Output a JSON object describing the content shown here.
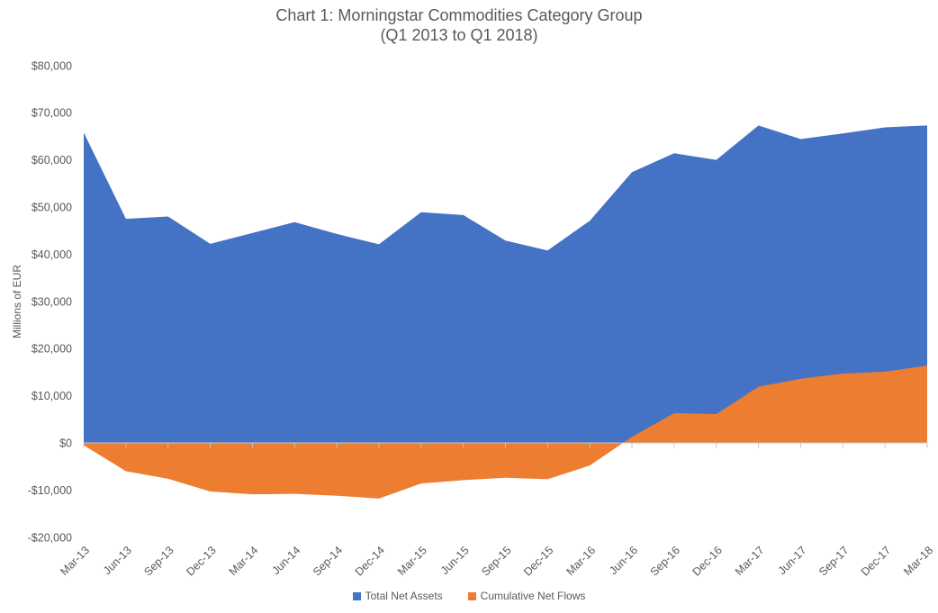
{
  "title": {
    "line1": "Chart 1: Morningstar Commodities Category Group",
    "line2": "(Q1 2013 to Q1 2018)"
  },
  "y_axis": {
    "title": "Millions of EUR",
    "tick_labels": [
      "$80,000",
      "$70,000",
      "$60,000",
      "$50,000",
      "$40,000",
      "$30,000",
      "$20,000",
      "$10,000",
      "$0",
      "-$10,000",
      "-$20,000"
    ]
  },
  "legend": {
    "items": [
      {
        "label": "Total Net Assets",
        "color": "#4472C4"
      },
      {
        "label": "Cumulative Net Flows",
        "color": "#ED7D31"
      }
    ]
  },
  "colors": {
    "series_blue": "#4472C4",
    "series_orange": "#ED7D31",
    "text": "#595959",
    "axis": "#C6C6C6",
    "background": "#FFFFFF"
  },
  "chart_data": {
    "type": "area",
    "title": "Chart 1: Morningstar Commodities Category Group (Q1 2013 to Q1 2018)",
    "xlabel": "",
    "ylabel": "Millions of EUR",
    "ylim": [
      -20000,
      80000
    ],
    "y_tick_step": 10000,
    "grid": false,
    "legend_position": "bottom",
    "categories": [
      "Mar-13",
      "Jun-13",
      "Sep-13",
      "Dec-13",
      "Mar-14",
      "Jun-14",
      "Sep-14",
      "Dec-14",
      "Mar-15",
      "Jun-15",
      "Sep-15",
      "Dec-15",
      "Mar-16",
      "Jun-16",
      "Sep-16",
      "Dec-16",
      "Mar-17",
      "Jun-17",
      "Sep-17",
      "Dec-17",
      "Mar-18"
    ],
    "series": [
      {
        "name": "Total Net Assets",
        "color": "#4472C4",
        "baseline": 0,
        "values": [
          65800,
          47500,
          48000,
          42200,
          44500,
          46800,
          44300,
          42100,
          48900,
          48300,
          42900,
          40800,
          47100,
          57400,
          61400,
          60000,
          67300,
          64400,
          65600,
          66900,
          67300
        ]
      },
      {
        "name": "Cumulative Net Flows",
        "color": "#ED7D31",
        "baseline": 0,
        "values": [
          -500,
          -6000,
          -7600,
          -10300,
          -10900,
          -10800,
          -11200,
          -11800,
          -8600,
          -7900,
          -7400,
          -7700,
          -4800,
          1300,
          6300,
          6100,
          11900,
          13600,
          14700,
          15100,
          16400
        ]
      }
    ]
  }
}
